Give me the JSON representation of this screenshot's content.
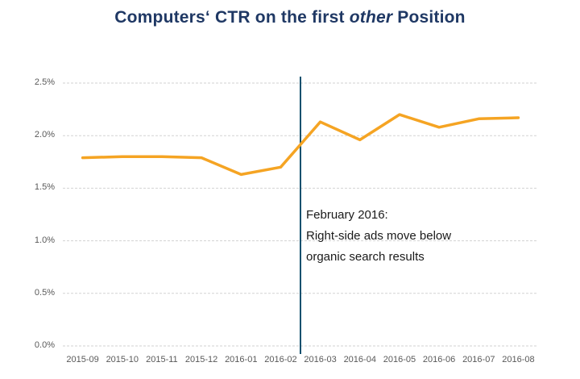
{
  "title": {
    "prefix": "Computers‘ CTR on the first ",
    "italic": "other",
    "suffix": " Position"
  },
  "annotation": {
    "lines": [
      "February 2016:",
      "Right-side ads move below",
      "organic search results"
    ]
  },
  "colors": {
    "series_line": "#F5A423",
    "divider_line": "#0E506E",
    "title_text": "#1F3864",
    "gridline": "#D2D2D2",
    "axis_text": "#595959"
  },
  "chart_data": {
    "type": "line",
    "title": "Computers‘ CTR on the first other Position",
    "categories": [
      "2015-09",
      "2015-10",
      "2015-11",
      "2015-12",
      "2016-01",
      "2016-02",
      "2016-03",
      "2016-04",
      "2016-05",
      "2016-06",
      "2016-07",
      "2016-08"
    ],
    "series": [
      {
        "name": "Computers CTR",
        "values": [
          1.79,
          1.8,
          1.8,
          1.79,
          1.63,
          1.7,
          2.13,
          1.96,
          2.2,
          2.08,
          2.16,
          2.17
        ]
      }
    ],
    "xlabel": "",
    "ylabel": "",
    "ylim": [
      0,
      2.5
    ],
    "ytick_step": 0.5,
    "ytick_format": "percent_one_decimal",
    "grid": "horizontal_dashed",
    "legend": "none",
    "divider_between": [
      "2016-02",
      "2016-03"
    ],
    "divider_annotation": "February 2016: Right-side ads move below organic search results"
  }
}
